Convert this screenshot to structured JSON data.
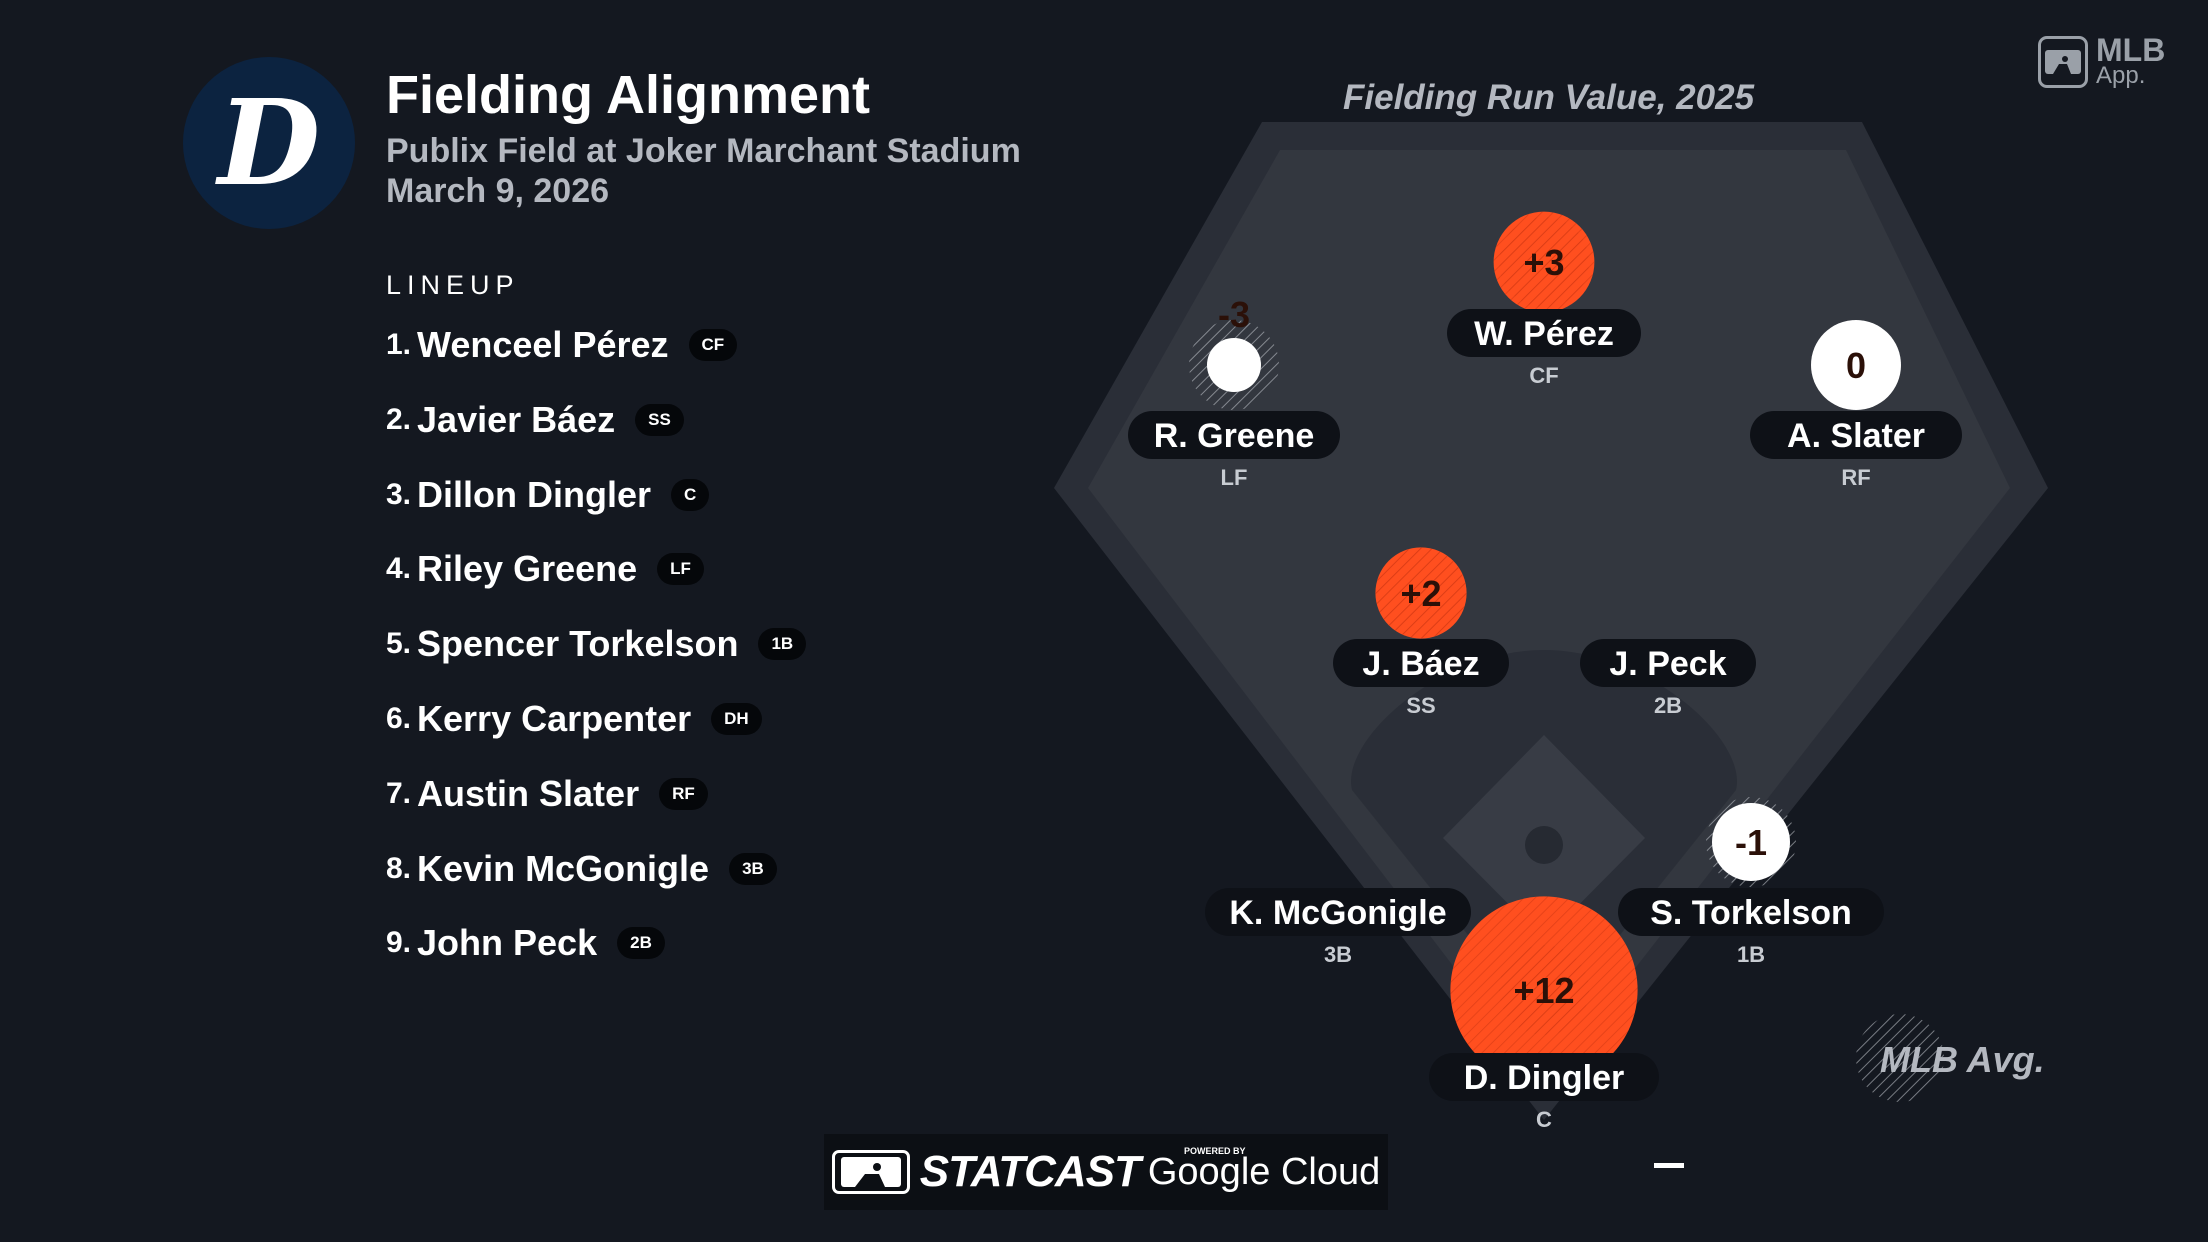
{
  "header": {
    "title": "Fielding Alignment",
    "venue": "Publix Field at Joker Marchant Stadium",
    "date": "March 9, 2026",
    "team_logo_letter": "D",
    "team_color": "#0c2340"
  },
  "brand": {
    "app_line1": "MLB",
    "app_line2": "App."
  },
  "lineup": {
    "heading": "LINEUP",
    "players": [
      {
        "num": "1.",
        "name": "Wenceel Pérez",
        "pos": "CF"
      },
      {
        "num": "2.",
        "name": "Javier Báez",
        "pos": "SS"
      },
      {
        "num": "3.",
        "name": "Dillon Dingler",
        "pos": "C"
      },
      {
        "num": "4.",
        "name": "Riley Greene",
        "pos": "LF"
      },
      {
        "num": "5.",
        "name": "Spencer Torkelson",
        "pos": "1B"
      },
      {
        "num": "6.",
        "name": "Kerry Carpenter",
        "pos": "DH"
      },
      {
        "num": "7.",
        "name": "Austin Slater",
        "pos": "RF"
      },
      {
        "num": "8.",
        "name": "Kevin McGonigle",
        "pos": "3B"
      },
      {
        "num": "9.",
        "name": "John Peck",
        "pos": "2B"
      }
    ]
  },
  "field": {
    "title": "Fielding Run Value, 2025",
    "positive_color": "#ff4f1f",
    "neutral_color": "#ffffff",
    "avg_label": "MLB Avg.",
    "players": [
      {
        "id": "cf",
        "name": "W. Pérez",
        "pos": "CF",
        "value": 3,
        "label": "+3"
      },
      {
        "id": "lf",
        "name": "R. Greene",
        "pos": "LF",
        "value": -3,
        "label": "-3"
      },
      {
        "id": "rf",
        "name": "A. Slater",
        "pos": "RF",
        "value": 0,
        "label": "0"
      },
      {
        "id": "ss",
        "name": "J. Báez",
        "pos": "SS",
        "value": 2,
        "label": "+2"
      },
      {
        "id": "2b",
        "name": "J. Peck",
        "pos": "2B",
        "value": null,
        "label": ""
      },
      {
        "id": "1b",
        "name": "S. Torkelson",
        "pos": "1B",
        "value": -1,
        "label": "-1"
      },
      {
        "id": "3b",
        "name": "K. McGonigle",
        "pos": "3B",
        "value": null,
        "label": ""
      },
      {
        "id": "c",
        "name": "D. Dingler",
        "pos": "C",
        "value": 12,
        "label": "+12"
      }
    ]
  },
  "footer": {
    "statcast": "STATCAST",
    "powered": "POWERED BY",
    "google": "Google Cloud"
  }
}
